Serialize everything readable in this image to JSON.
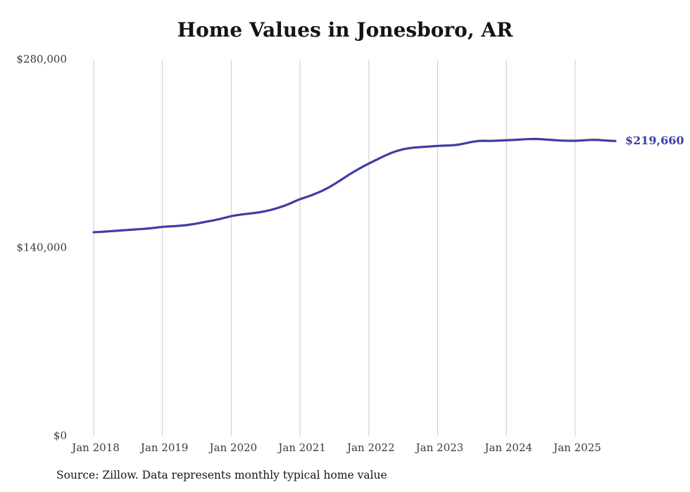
{
  "chart_data": {
    "type": "line",
    "title": "Home Values in Jonesboro, AR",
    "source": "Source: Zillow. Data represents monthly typical home value",
    "series_name": "Monthly typical home value",
    "end_label": "$219,660",
    "end_value": 219660,
    "line_color": "#3f3da6",
    "grid": "vertical-only",
    "legend": "none",
    "ylim": [
      0,
      280000
    ],
    "y_ticks": [
      {
        "value": 280000,
        "label": "$280,000"
      },
      {
        "value": 140000,
        "label": "$140,000"
      },
      {
        "value": 0,
        "label": "$0"
      }
    ],
    "x_tick_labels": [
      "Jan 2018",
      "Jan 2019",
      "Jan 2020",
      "Jan 2021",
      "Jan 2022",
      "Jan 2023",
      "Jan 2024",
      "Jan 2025"
    ],
    "x_start": "2018-01",
    "x_end": "2025-08",
    "months": [
      "2018-01",
      "2018-02",
      "2018-03",
      "2018-04",
      "2018-05",
      "2018-06",
      "2018-07",
      "2018-08",
      "2018-09",
      "2018-10",
      "2018-11",
      "2018-12",
      "2019-01",
      "2019-02",
      "2019-03",
      "2019-04",
      "2019-05",
      "2019-06",
      "2019-07",
      "2019-08",
      "2019-09",
      "2019-10",
      "2019-11",
      "2019-12",
      "2020-01",
      "2020-02",
      "2020-03",
      "2020-04",
      "2020-05",
      "2020-06",
      "2020-07",
      "2020-08",
      "2020-09",
      "2020-10",
      "2020-11",
      "2020-12",
      "2021-01",
      "2021-02",
      "2021-03",
      "2021-04",
      "2021-05",
      "2021-06",
      "2021-07",
      "2021-08",
      "2021-09",
      "2021-10",
      "2021-11",
      "2021-12",
      "2022-01",
      "2022-02",
      "2022-03",
      "2022-04",
      "2022-05",
      "2022-06",
      "2022-07",
      "2022-08",
      "2022-09",
      "2022-10",
      "2022-11",
      "2022-12",
      "2023-01",
      "2023-02",
      "2023-03",
      "2023-04",
      "2023-05",
      "2023-06",
      "2023-07",
      "2023-08",
      "2023-09",
      "2023-10",
      "2023-11",
      "2023-12",
      "2024-01",
      "2024-02",
      "2024-03",
      "2024-04",
      "2024-05",
      "2024-06",
      "2024-07",
      "2024-08",
      "2024-09",
      "2024-10",
      "2024-11",
      "2024-12",
      "2025-01",
      "2025-02",
      "2025-03",
      "2025-04",
      "2025-05",
      "2025-06",
      "2025-07",
      "2025-08"
    ],
    "values": [
      151800,
      152000,
      152300,
      152600,
      152900,
      153200,
      153500,
      153800,
      154100,
      154400,
      154800,
      155300,
      155800,
      156100,
      156300,
      156600,
      157000,
      157600,
      158300,
      159100,
      159900,
      160700,
      161600,
      162700,
      163800,
      164500,
      165100,
      165600,
      166100,
      166700,
      167500,
      168500,
      169700,
      171100,
      172700,
      174600,
      176400,
      177800,
      179300,
      181000,
      182900,
      185100,
      187600,
      190300,
      193100,
      195800,
      198300,
      200700,
      202900,
      205000,
      207100,
      209100,
      210900,
      212400,
      213500,
      214300,
      214800,
      215100,
      215400,
      215700,
      216000,
      216200,
      216300,
      216600,
      217200,
      218100,
      219000,
      219600,
      219800,
      219700,
      219800,
      220000,
      220200,
      220400,
      220600,
      220900,
      221100,
      221200,
      221000,
      220700,
      220400,
      220100,
      219900,
      219800,
      219800,
      220000,
      220300,
      220500,
      220400,
      220100,
      219800,
      219660
    ]
  }
}
